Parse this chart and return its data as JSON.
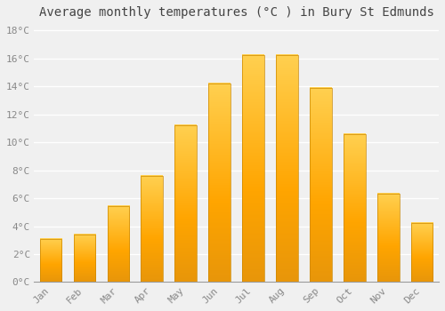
{
  "title": "Average monthly temperatures (°C ) in Bury St Edmunds",
  "months": [
    "Jan",
    "Feb",
    "Mar",
    "Apr",
    "May",
    "Jun",
    "Jul",
    "Aug",
    "Sep",
    "Oct",
    "Nov",
    "Dec"
  ],
  "values": [
    3.1,
    3.4,
    5.4,
    7.6,
    11.2,
    14.2,
    16.2,
    16.2,
    13.9,
    10.6,
    6.3,
    4.2
  ],
  "bar_color": "#FFA500",
  "bar_color_light": "#FFD050",
  "yticks": [
    0,
    2,
    4,
    6,
    8,
    10,
    12,
    14,
    16,
    18
  ],
  "ytick_labels": [
    "0°C",
    "2°C",
    "4°C",
    "6°C",
    "8°C",
    "10°C",
    "12°C",
    "14°C",
    "16°C",
    "18°C"
  ],
  "ylim": [
    0,
    18.5
  ],
  "background_color": "#F0F0F0",
  "grid_color": "#FFFFFF",
  "title_fontsize": 10,
  "tick_fontsize": 8,
  "bar_edge_color": "#CC8800"
}
